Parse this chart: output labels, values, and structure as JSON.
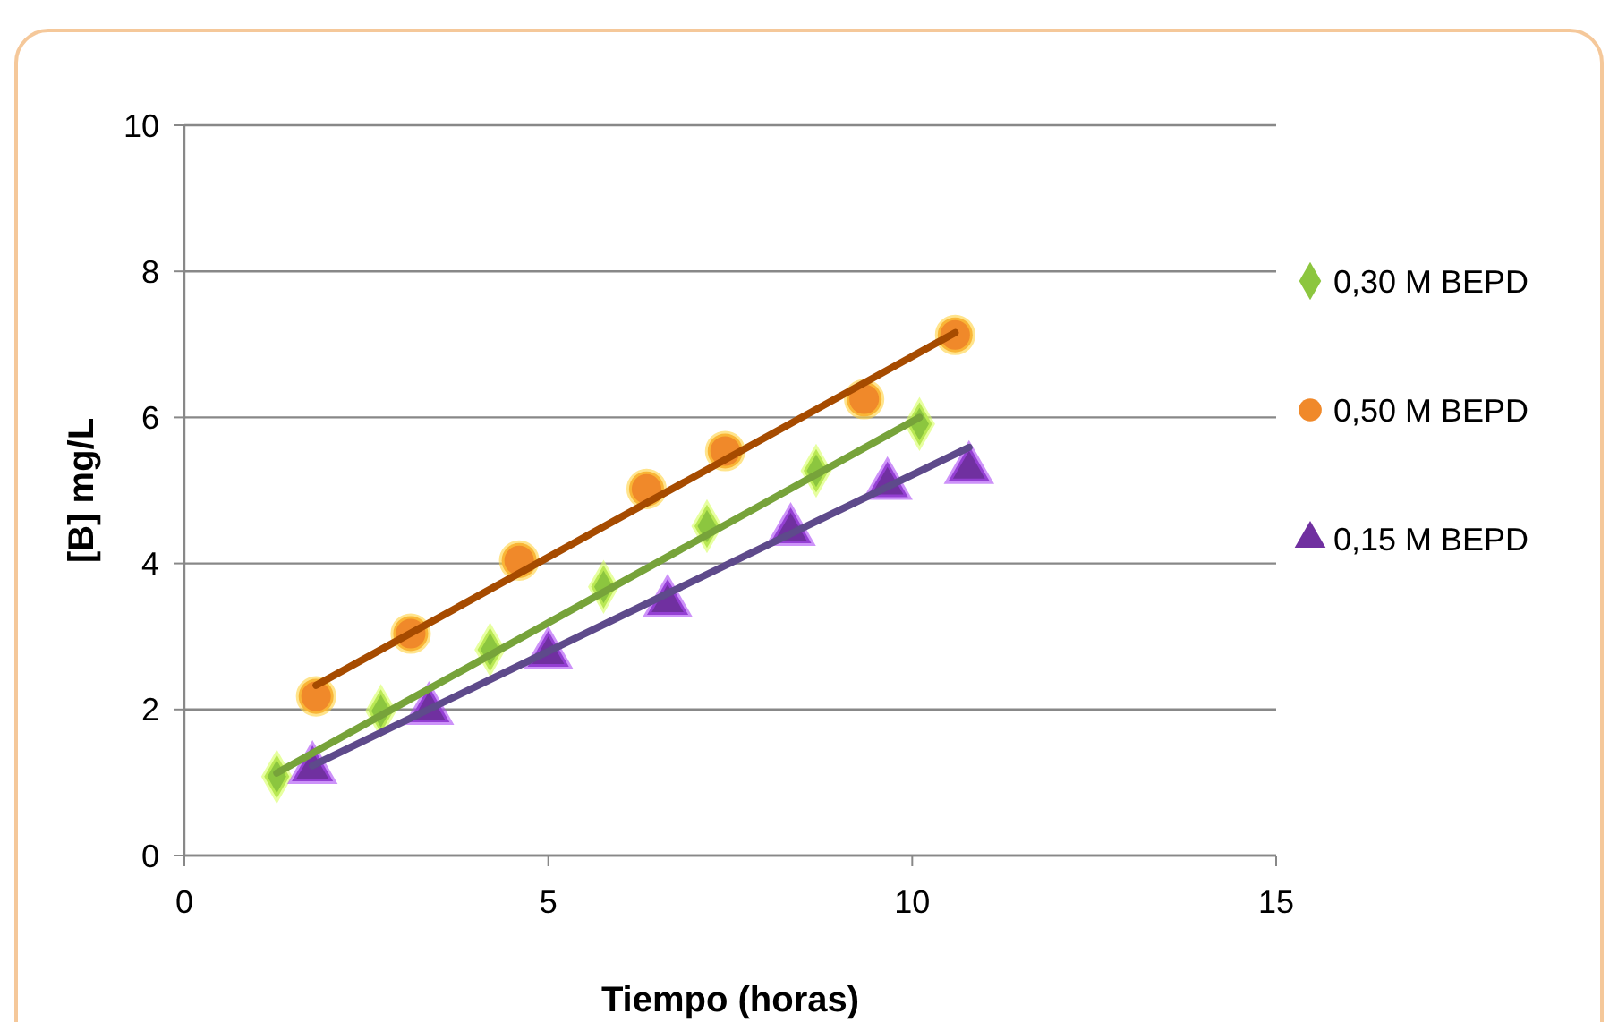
{
  "chart_data": {
    "type": "scatter",
    "xlabel": "Tiempo (horas)",
    "ylabel": "[B] mg/L",
    "xlim": [
      0,
      15
    ],
    "xticks": [
      0,
      5,
      10,
      15
    ],
    "ylim": [
      0,
      10
    ],
    "yticks": [
      0,
      2,
      4,
      6,
      8,
      10
    ],
    "grid": "y",
    "legend": "right",
    "series": [
      {
        "name": "0,30 M BEPD",
        "marker": "diamond",
        "color": "#8cc63f",
        "x": [
          1.27,
          2.7,
          4.2,
          5.76,
          7.18,
          8.68,
          10.1
        ],
        "values": [
          1.08,
          1.98,
          2.82,
          3.68,
          4.51,
          5.27,
          5.91
        ]
      },
      {
        "name": "0,50 M BEPD",
        "marker": "circle",
        "color": "#f0892a",
        "x": [
          1.81,
          3.11,
          4.6,
          6.35,
          7.43,
          9.34,
          10.59
        ],
        "values": [
          2.18,
          3.04,
          4.04,
          5.02,
          5.54,
          6.25,
          7.13
        ]
      },
      {
        "name": "0,15 M BEPD",
        "marker": "triangle",
        "color": "#7030a0",
        "x": [
          1.76,
          3.36,
          5.0,
          6.64,
          8.33,
          9.66,
          10.78
        ],
        "values": [
          1.18,
          1.99,
          2.75,
          3.46,
          4.44,
          5.07,
          5.29
        ]
      },
      {
        "type": "line",
        "color": "#77a33a",
        "x": [
          1.27,
          10.1
        ],
        "values": [
          1.13,
          6.0
        ]
      },
      {
        "type": "line",
        "color": "#a64b00",
        "x": [
          1.81,
          10.59
        ],
        "values": [
          2.33,
          7.16
        ]
      },
      {
        "type": "line",
        "color": "#5e4a8b",
        "x": [
          1.76,
          10.78
        ],
        "values": [
          1.23,
          5.59
        ]
      }
    ]
  }
}
